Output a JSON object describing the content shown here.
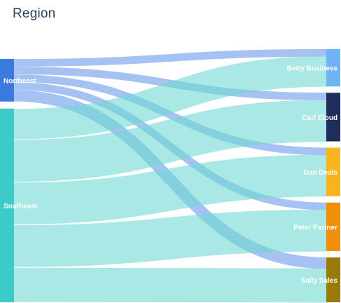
{
  "title": "Region",
  "chart_data": {
    "type": "sankey",
    "title": "Region",
    "sources": [
      {
        "name": "Northeast",
        "color": "#3a7be0"
      },
      {
        "name": "Southeast",
        "color": "#3cccc8"
      }
    ],
    "targets": [
      {
        "name": "Betty Business",
        "color": "#6fb4f5"
      },
      {
        "name": "Carl Cloud",
        "color": "#1e2d5a"
      },
      {
        "name": "Dan Deals",
        "color": "#f6b51e"
      },
      {
        "name": "Peter Partner",
        "color": "#f0900a"
      },
      {
        "name": "Sally Sales",
        "color": "#9c7a08"
      }
    ],
    "flows": [
      {
        "source": "Northeast",
        "target": "Betty Business",
        "value": 10
      },
      {
        "source": "Northeast",
        "target": "Carl Cloud",
        "value": 10
      },
      {
        "source": "Northeast",
        "target": "Dan Deals",
        "value": 10
      },
      {
        "source": "Northeast",
        "target": "Peter Partner",
        "value": 10
      },
      {
        "source": "Northeast",
        "target": "Sally Sales",
        "value": 15
      },
      {
        "source": "Southeast",
        "target": "Betty Business",
        "value": 40
      },
      {
        "source": "Southeast",
        "target": "Carl Cloud",
        "value": 55
      },
      {
        "source": "Southeast",
        "target": "Dan Deals",
        "value": 55
      },
      {
        "source": "Southeast",
        "target": "Peter Partner",
        "value": 55
      },
      {
        "source": "Southeast",
        "target": "Sally Sales",
        "value": 45
      }
    ],
    "link_colors": {
      "Northeast": "#5b8fe8",
      "Southeast": "#6fd9d2"
    }
  }
}
